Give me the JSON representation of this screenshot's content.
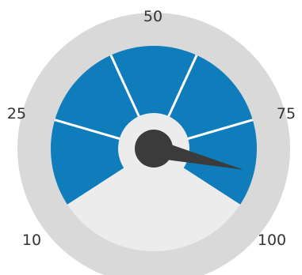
{
  "chart_data": {
    "type": "gauge",
    "title": "",
    "tick_labels": [
      "10",
      "25",
      "50",
      "75",
      "100"
    ],
    "tick_values": [
      10,
      25,
      50,
      75,
      100
    ],
    "range": [
      10,
      100
    ],
    "value": 92,
    "segments": 5,
    "colors": {
      "bezel": "#d9d9d9",
      "band": "#0f7dbb",
      "gap": "#ececec",
      "separator": "#ffffff",
      "hub_ring": "#ececec",
      "needle": "#3b3b3b"
    }
  }
}
